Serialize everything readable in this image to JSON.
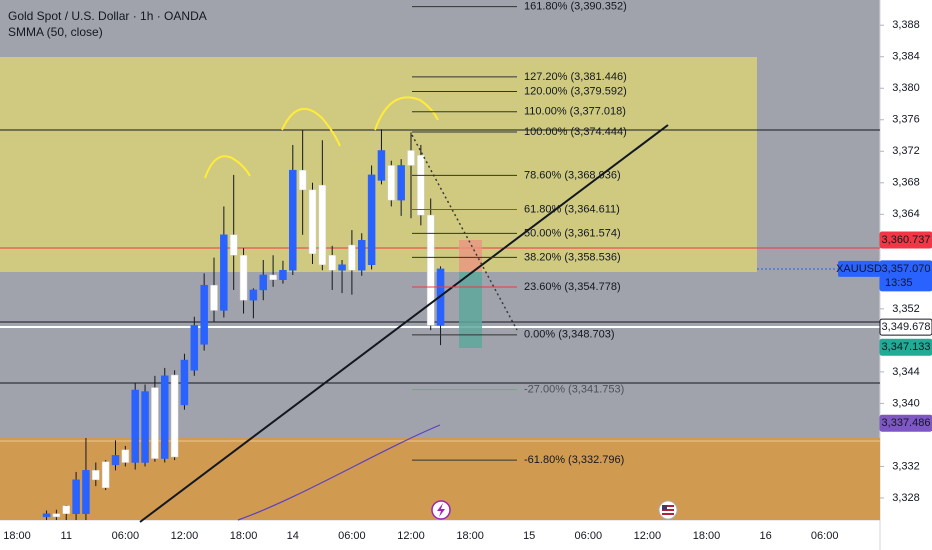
{
  "chart_data": {
    "type": "candlestick",
    "title": "Gold Spot / U.S. Dollar · 1h · OANDA",
    "subtitle": "SMMA (50, close)",
    "categories": [
      "18:00",
      null,
      null,
      null,
      null,
      "11",
      null,
      null,
      null,
      null,
      null,
      "06:00",
      null,
      null,
      null,
      null,
      null,
      "12:00",
      null,
      null,
      null,
      null,
      null,
      "18:00",
      null,
      null,
      null,
      null,
      "14",
      null,
      null,
      null,
      null,
      null,
      "06:00",
      null,
      null,
      null,
      null,
      null,
      "12:00",
      null,
      null,
      null,
      null,
      null,
      "18:00",
      null,
      null,
      null,
      null,
      null,
      "15",
      null,
      null,
      null,
      null,
      null,
      "06:00",
      null,
      null,
      null,
      null,
      null,
      "12:00",
      null,
      null,
      null,
      null,
      null,
      "18:00",
      null,
      null,
      null,
      null,
      null,
      "16",
      null,
      null,
      null,
      null,
      null,
      "06:00",
      null,
      null,
      null,
      null,
      null
    ],
    "open": [
      null,
      null,
      null,
      3325.6,
      3326.0,
      3327.0,
      3326.0,
      3326.0,
      3331.5,
      3332.6,
      3332.2,
      3334.1,
      3332.5,
      3332.5,
      3342.0,
      3333.0,
      3343.6,
      3339.8,
      3344.2,
      3347.5,
      3355.0,
      3351.8,
      3361.4,
      3358.8,
      3353.1,
      3354.4,
      3356.3,
      3355.7,
      3356.9,
      3369.6,
      3367.1,
      3367.7,
      3358.8,
      3356.9,
      3360.1,
      3356.9,
      3357.6,
      3368.3,
      3370.2,
      3365.8,
      3372.1,
      3371.5,
      3363.9,
      3349.9,
      null,
      null,
      null,
      null,
      null,
      null,
      null,
      null,
      null,
      null,
      null,
      null,
      null,
      null,
      null,
      null,
      null,
      null,
      null,
      null,
      null,
      null,
      null,
      null,
      null,
      null,
      null,
      null,
      null,
      null,
      null,
      null,
      null,
      null,
      null,
      null,
      null,
      null,
      null,
      null,
      null,
      null,
      null,
      null
    ],
    "high": [
      null,
      null,
      null,
      3326.4,
      3326.5,
      3327.1,
      3331.3,
      3335.6,
      3332.5,
      3332.8,
      3335.3,
      3334.6,
      3342.6,
      3342.4,
      3343.5,
      3344.5,
      3344.2,
      3346.3,
      3351.0,
      3356.5,
      3358.5,
      3365.0,
      3369.0,
      3359.7,
      3354.6,
      3358.2,
      3358.8,
      3358.1,
      3372.8,
      3374.7,
      3368.0,
      3373.4,
      3360.0,
      3358.2,
      3362.0,
      3361.6,
      3370.2,
      3374.8,
      3370.8,
      3371.0,
      3374.4,
      3372.8,
      3366.0,
      3357.4,
      null,
      null,
      null,
      null,
      null,
      null,
      null,
      null,
      null,
      null,
      null,
      null,
      null,
      null,
      null,
      null,
      null,
      null,
      null,
      null,
      null,
      null,
      null,
      null,
      null,
      null,
      null,
      null,
      null,
      null,
      null,
      null,
      null,
      null,
      null,
      null,
      null,
      null,
      null,
      null,
      null,
      null,
      null,
      null
    ],
    "low": [
      null,
      null,
      null,
      3325.2,
      3325.2,
      3325.2,
      3325.2,
      3325.2,
      3329.5,
      3329.0,
      3331.5,
      3332.0,
      3331.6,
      3332.0,
      3332.6,
      3332.5,
      3332.8,
      3339.2,
      3343.5,
      3346.7,
      3350.4,
      3350.9,
      3354.4,
      3351.4,
      3350.8,
      3353.1,
      3354.8,
      3355.2,
      3356.3,
      3361.4,
      3357.7,
      3356.9,
      3354.4,
      3354.0,
      3353.8,
      3356.2,
      3357.0,
      3367.8,
      3365.0,
      3363.8,
      3363.5,
      3362.6,
      3349.3,
      3347.4,
      null,
      null,
      null,
      null,
      null,
      null,
      null,
      null,
      null,
      null,
      null,
      null,
      null,
      null,
      null,
      null,
      null,
      null,
      null,
      null,
      null,
      null,
      null,
      null,
      null,
      null,
      null,
      null,
      null,
      null,
      null,
      null,
      null,
      null,
      null,
      null,
      null,
      null,
      null,
      null,
      null,
      null,
      null,
      null
    ],
    "close": [
      null,
      null,
      null,
      3326.0,
      3325.6,
      3326.0,
      3330.3,
      3331.5,
      3330.3,
      3329.3,
      3333.4,
      3332.5,
      3341.7,
      3341.5,
      3333.0,
      3343.5,
      3333.2,
      3345.5,
      3349.9,
      3355.0,
      3351.8,
      3361.4,
      3358.8,
      3353.1,
      3354.4,
      3356.3,
      3355.7,
      3356.9,
      3369.6,
      3367.1,
      3359.0,
      3357.6,
      3356.9,
      3357.6,
      3356.9,
      3360.7,
      3369.0,
      3372.1,
      3365.8,
      3370.2,
      3370.2,
      3363.9,
      3349.9,
      3357.07,
      null,
      null,
      null,
      null,
      null,
      null,
      null,
      null,
      null,
      null,
      null,
      null,
      null,
      null,
      null,
      null,
      null,
      null,
      null,
      null,
      null,
      null,
      null,
      null,
      null,
      null,
      null,
      null,
      null,
      null,
      null,
      null,
      null,
      null,
      null,
      null,
      null,
      null,
      null,
      null,
      null,
      null,
      null,
      null
    ],
    "up_color": "#2962ff",
    "down_color": "#ffffff",
    "ylim": [
      3325.2,
      3391.2
    ],
    "yticks": [
      {
        "value": 3328,
        "label": "3,328"
      },
      {
        "value": 3332,
        "label": "3,332"
      },
      {
        "value": 3340,
        "label": "3,340"
      },
      {
        "value": 3344,
        "label": "3,344"
      },
      {
        "value": 3352,
        "label": "3,352"
      },
      {
        "value": 3364,
        "label": "3,364"
      },
      {
        "value": 3368,
        "label": "3,368"
      },
      {
        "value": 3372,
        "label": "3,372"
      },
      {
        "value": 3376,
        "label": "3,376"
      },
      {
        "value": 3380,
        "label": "3,380"
      },
      {
        "value": 3384,
        "label": "3,384"
      },
      {
        "value": 3388,
        "label": "3,388"
      }
    ],
    "grid": false,
    "fib_levels": [
      {
        "value": 3390.352,
        "label": "161.80% (3,390.352)",
        "color": "#333333"
      },
      {
        "value": 3381.446,
        "label": "127.20% (3,381.446)",
        "color": "#333333"
      },
      {
        "value": 3379.592,
        "label": "120.00% (3,379.592)",
        "color": "#333333"
      },
      {
        "value": 3377.018,
        "label": "110.00% (3,377.018)",
        "color": "#333333"
      },
      {
        "value": 3374.444,
        "label": "100.00% (3,374.444)",
        "color": "#333333"
      },
      {
        "value": 3368.936,
        "label": "78.60% (3,368.936)",
        "color": "#333333"
      },
      {
        "value": 3364.611,
        "label": "61.80% (3,364.611)",
        "color": "#2962ff"
      },
      {
        "value": 3361.574,
        "label": "50.00% (3,361.574)",
        "color": "#333333"
      },
      {
        "value": 3358.536,
        "label": "38.20% (3,358.536)",
        "color": "#333333"
      },
      {
        "value": 3354.778,
        "label": "23.60% (3,354.778)",
        "color": "#f23645"
      },
      {
        "value": 3348.703,
        "label": "0.00% (3,348.703)",
        "color": "#333333"
      },
      {
        "value": 3341.753,
        "label": "-27.00% (3,341.753)",
        "color": "#4caf50"
      },
      {
        "value": 3332.796,
        "label": "-61.80% (3,332.796)",
        "color": "#333333"
      }
    ],
    "price_tags": [
      {
        "value": 3360.737,
        "label": "3,360.737",
        "color": "#f23645"
      },
      {
        "value": 3357.07,
        "label": "3,357.070",
        "color": "#2962ff",
        "symbol": "XAUUSD",
        "countdown": "13:35"
      },
      {
        "value": 3349.678,
        "label": "3,349.678",
        "color": "#ffffff"
      },
      {
        "value": 3347.133,
        "label": "3,347.133",
        "color": "#22ab94"
      },
      {
        "value": 3337.486,
        "label": "3,337.486",
        "color": "#7e57c2"
      }
    ]
  }
}
